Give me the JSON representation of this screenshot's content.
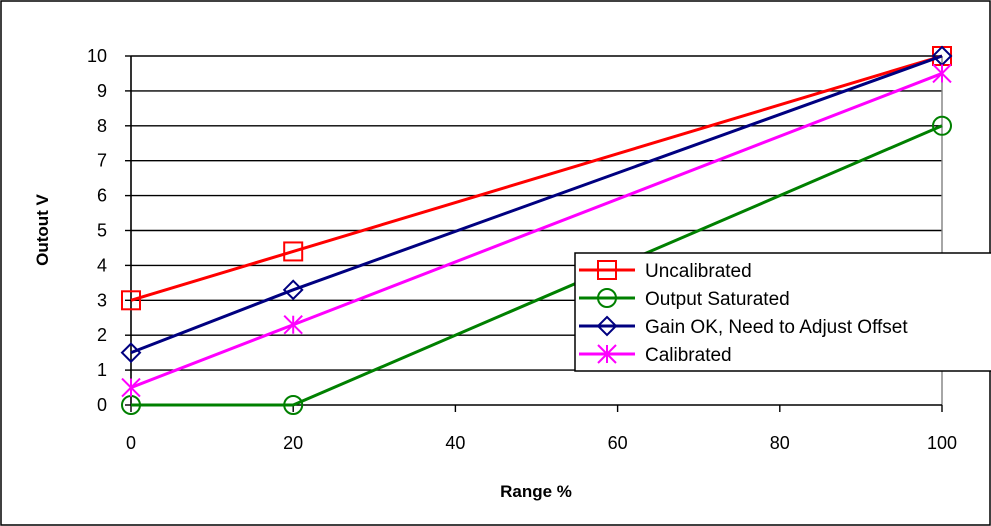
{
  "chart_data": {
    "type": "line",
    "title": "",
    "xlabel": "Range %",
    "ylabel": "Outout V",
    "xlim": [
      0,
      100
    ],
    "ylim": [
      0,
      10
    ],
    "x_ticks": [
      "0",
      "20",
      "40",
      "60",
      "80",
      "100"
    ],
    "y_ticks": [
      "0",
      "1",
      "2",
      "3",
      "4",
      "5",
      "6",
      "7",
      "8",
      "9",
      "10"
    ],
    "grid": "horizontal",
    "legend_position": "bottom-right",
    "series": [
      {
        "name": "Uncalibrated",
        "color": "#ff0000",
        "marker": "square",
        "x": [
          0,
          20,
          100
        ],
        "y": [
          3.0,
          4.4,
          10.0
        ]
      },
      {
        "name": "Output Saturated",
        "color": "#008000",
        "marker": "circle",
        "x": [
          0,
          20,
          100
        ],
        "y": [
          0.0,
          0.0,
          8.0
        ]
      },
      {
        "name": "Gain OK,  Need to Adjust Offset",
        "color": "#000080",
        "marker": "diamond",
        "x": [
          0,
          20,
          100
        ],
        "y": [
          1.5,
          3.3,
          10.0
        ]
      },
      {
        "name": "Calibrated",
        "color": "#ff00ff",
        "marker": "asterisk",
        "x": [
          0,
          20,
          100
        ],
        "y": [
          0.5,
          2.3,
          9.5
        ]
      }
    ]
  }
}
